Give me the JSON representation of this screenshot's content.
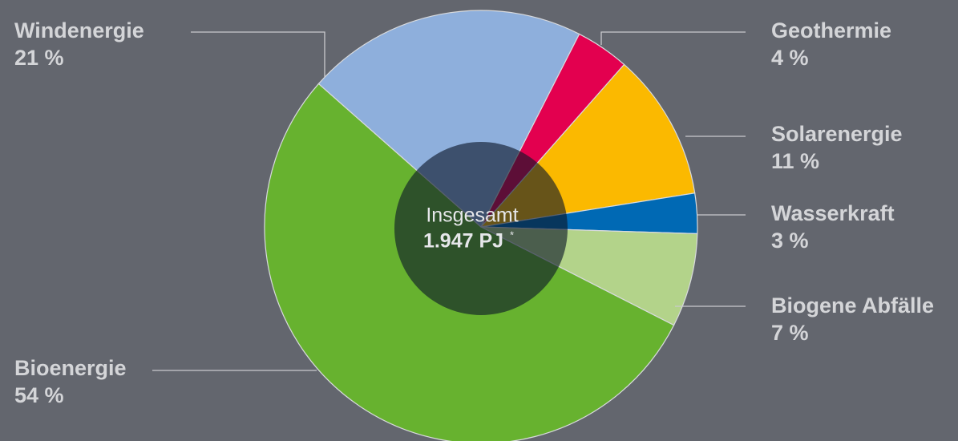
{
  "chart_data": {
    "type": "pie",
    "categories": [
      "Geothermie",
      "Solarenergie",
      "Wasserkraft",
      "Biogene Abfälle",
      "Bioenergie",
      "Windenergie"
    ],
    "values": [
      4,
      11,
      3,
      7,
      54,
      21
    ],
    "value_labels": [
      "4 %",
      "11 %",
      "3 %",
      "7 %",
      "54 %",
      "21 %"
    ],
    "colors": [
      "#e3004f",
      "#fbb900",
      "#0069b4",
      "#b3d38a",
      "#67b22f",
      "#8eafdc"
    ],
    "center_label": "Insgesamt",
    "center_value": "1.947 PJ",
    "center_footnote_mark": "*"
  }
}
